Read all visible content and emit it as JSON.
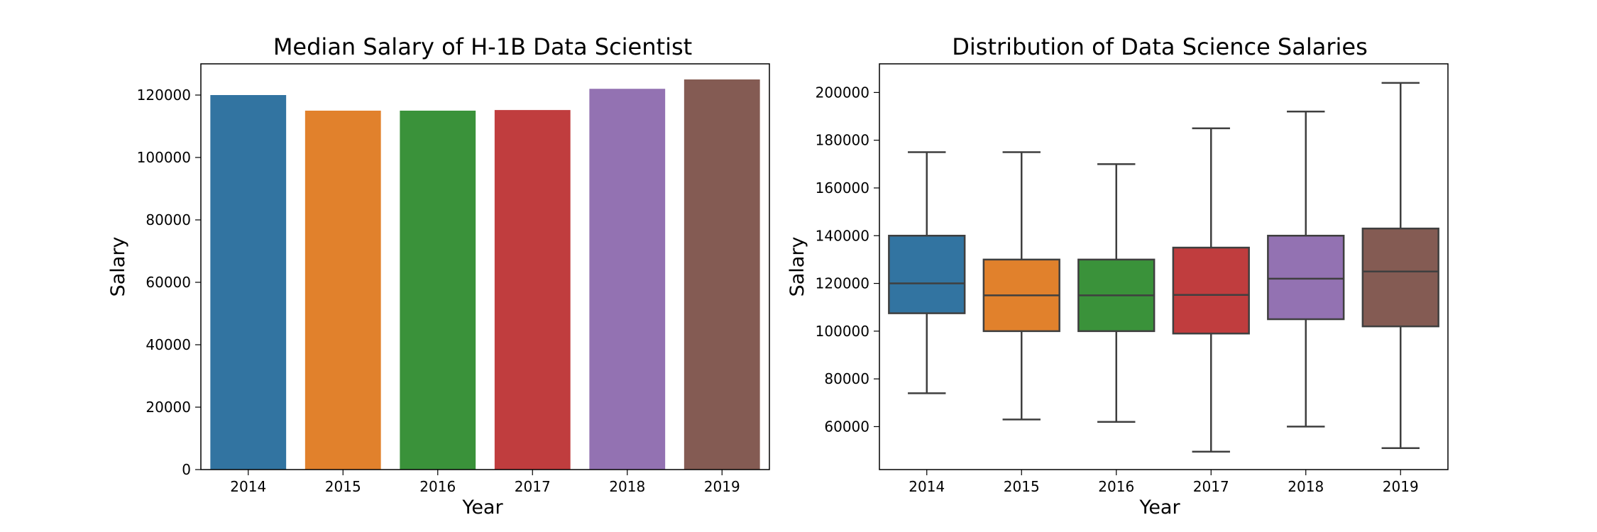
{
  "chart_data": [
    {
      "type": "bar",
      "title": "Median Salary of H-1B Data Scientist",
      "xlabel": "Year",
      "ylabel": "Salary",
      "categories": [
        "2014",
        "2015",
        "2016",
        "2017",
        "2018",
        "2019"
      ],
      "values": [
        120000,
        115000,
        115000,
        115200,
        122000,
        125000
      ],
      "colors": [
        "#3274a1",
        "#e1812c",
        "#3a923a",
        "#c03d3e",
        "#9372b2",
        "#845b53"
      ],
      "ylim": [
        0,
        130000
      ],
      "yticks": [
        0,
        20000,
        40000,
        60000,
        80000,
        100000,
        120000
      ],
      "grid": false
    },
    {
      "type": "box",
      "title": "Distribution of Data Science Salaries",
      "xlabel": "Year",
      "ylabel": "Salary",
      "categories": [
        "2014",
        "2015",
        "2016",
        "2017",
        "2018",
        "2019"
      ],
      "boxes": [
        {
          "whisker_low": 74000,
          "q1": 107500,
          "median": 120000,
          "q3": 140000,
          "whisker_high": 175000
        },
        {
          "whisker_low": 63000,
          "q1": 100000,
          "median": 115000,
          "q3": 130000,
          "whisker_high": 175000
        },
        {
          "whisker_low": 62000,
          "q1": 100000,
          "median": 115000,
          "q3": 130000,
          "whisker_high": 170000
        },
        {
          "whisker_low": 49500,
          "q1": 99000,
          "median": 115200,
          "q3": 135000,
          "whisker_high": 185000
        },
        {
          "whisker_low": 60000,
          "q1": 105000,
          "median": 122000,
          "q3": 140000,
          "whisker_high": 192000
        },
        {
          "whisker_low": 51000,
          "q1": 102000,
          "median": 125000,
          "q3": 143000,
          "whisker_high": 204000
        }
      ],
      "colors": [
        "#3274a1",
        "#e1812c",
        "#3a923a",
        "#c03d3e",
        "#9372b2",
        "#845b53"
      ],
      "ylim": [
        42000,
        212000
      ],
      "yticks": [
        60000,
        80000,
        100000,
        120000,
        140000,
        160000,
        180000,
        200000
      ],
      "grid": false
    }
  ]
}
